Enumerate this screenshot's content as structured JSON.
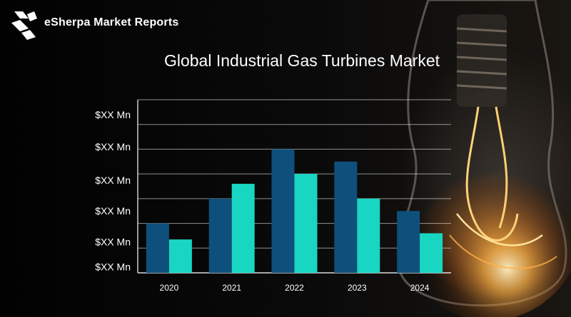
{
  "brand": {
    "name": "eSherpa Market Reports",
    "logo_icon": "esherpa-logo-icon"
  },
  "colors": {
    "series_dark": "#0f4f7c",
    "series_light": "#18d6c2",
    "grid": "#ffffff",
    "text": "#ffffff"
  },
  "chart_data": {
    "type": "bar",
    "title": "Global Industrial Gas Turbines Market",
    "xlabel": "",
    "ylabel": "",
    "categories": [
      "2020",
      "2021",
      "2022",
      "2023",
      "2024"
    ],
    "y_tick_labels": [
      "$XX Mn",
      "$XX Mn",
      "$XX Mn",
      "$XX Mn",
      "$XX Mn",
      "$XX Mn"
    ],
    "ylim": [
      0,
      7
    ],
    "grid": true,
    "legend": "none",
    "series": [
      {
        "values": [
          2.0,
          3.0,
          5.0,
          4.5,
          2.5
        ],
        "color": "#0f4f7c"
      },
      {
        "values": [
          1.35,
          3.6,
          4.0,
          3.0,
          1.6
        ],
        "color": "#18d6c2"
      }
    ]
  }
}
